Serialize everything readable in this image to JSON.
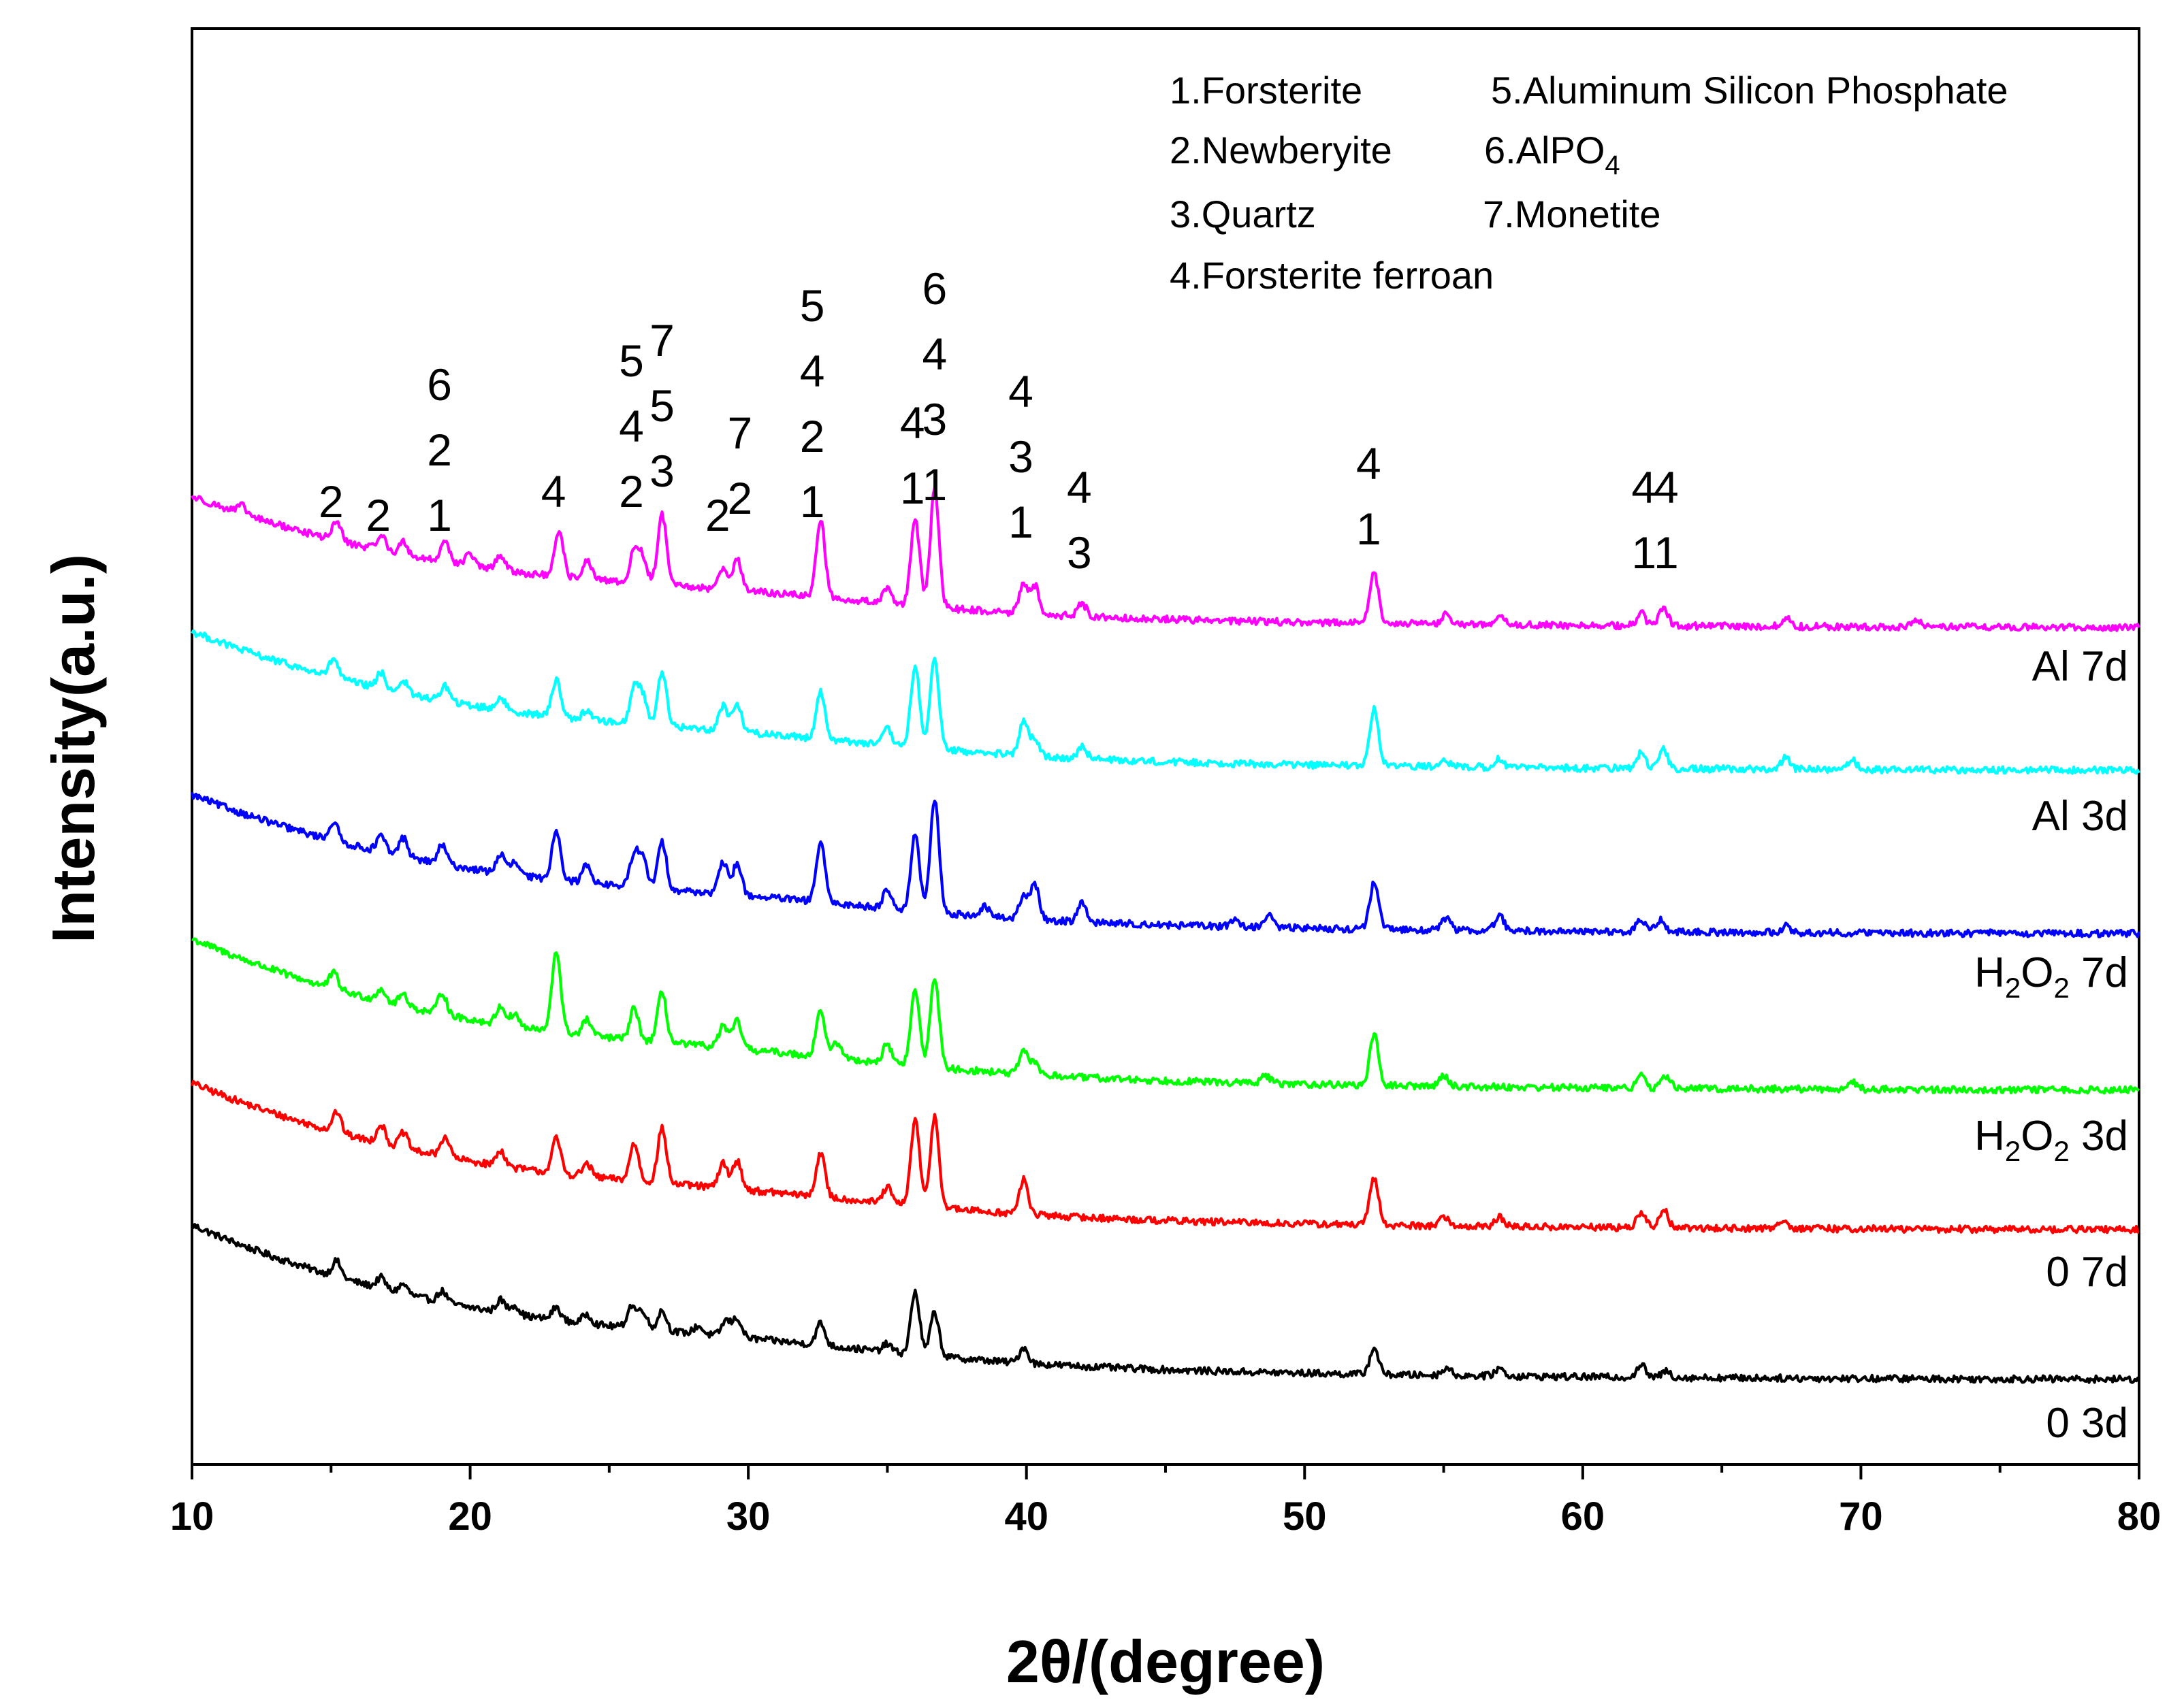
{
  "chart_data": {
    "type": "line",
    "title": "",
    "xlabel": "2θ/(degree)",
    "ylabel": "Intensity(a.u.)",
    "xlim": [
      10,
      80
    ],
    "xticks": [
      "10",
      "20",
      "30",
      "40",
      "50",
      "60",
      "70",
      "80"
    ],
    "yticks": "none",
    "legend": {
      "items": [
        {
          "text": "1.Forsterite"
        },
        {
          "text": "5.Aluminum Silicon Phosphate"
        },
        {
          "text": "2.Newberyite"
        },
        {
          "text": "6.AlPO",
          "sub": "4"
        },
        {
          "text": "3.Quartz"
        },
        {
          "text": "7.Monetite"
        },
        {
          "text": "4.Forsterite ferroan"
        }
      ]
    },
    "series": [
      {
        "name": "0 3d",
        "label_main": "0 3d",
        "label_sub": "",
        "label_tail": "",
        "color": "#000000",
        "base_start": 1.0,
        "base_end": 0.01,
        "noise": 0.022,
        "peaks": [
          [
            15.2,
            0.1
          ],
          [
            16.8,
            0.07
          ],
          [
            17.6,
            0.06
          ],
          [
            19.0,
            0.07
          ],
          [
            21.1,
            0.08
          ],
          [
            21.6,
            0.06
          ],
          [
            23.1,
            0.08
          ],
          [
            24.2,
            0.06
          ],
          [
            25.8,
            0.14
          ],
          [
            26.2,
            0.12
          ],
          [
            26.9,
            0.13
          ],
          [
            28.2,
            0.05
          ],
          [
            29.2,
            0.1
          ],
          [
            29.6,
            0.12
          ],
          [
            32.6,
            0.14
          ],
          [
            35.0,
            0.05
          ],
          [
            36.0,
            0.4
          ],
          [
            36.7,
            0.28
          ],
          [
            39.9,
            0.1
          ],
          [
            52.5,
            0.17
          ],
          [
            55.1,
            0.05
          ],
          [
            57.0,
            0.05
          ],
          [
            62.1,
            0.08
          ],
          [
            63.0,
            0.04
          ]
        ]
      },
      {
        "name": "0 7d",
        "label_main": "0 7d",
        "label_sub": "",
        "label_tail": "",
        "color": "#ff0000",
        "base_start": 0.95,
        "base_end": 0.01,
        "noise": 0.022,
        "peaks": [
          [
            15.2,
            0.13
          ],
          [
            16.8,
            0.12
          ],
          [
            17.6,
            0.1
          ],
          [
            19.1,
            0.13
          ],
          [
            21.1,
            0.1
          ],
          [
            23.1,
            0.22
          ],
          [
            24.2,
            0.08
          ],
          [
            25.9,
            0.24
          ],
          [
            26.9,
            0.35
          ],
          [
            29.1,
            0.16
          ],
          [
            29.6,
            0.18
          ],
          [
            32.6,
            0.28
          ],
          [
            35.0,
            0.1
          ],
          [
            36.0,
            0.55
          ],
          [
            36.7,
            0.58
          ],
          [
            39.9,
            0.22
          ],
          [
            52.5,
            0.3
          ],
          [
            55.0,
            0.06
          ],
          [
            57.0,
            0.06
          ],
          [
            62.1,
            0.1
          ],
          [
            62.9,
            0.12
          ],
          [
            67.2,
            0.06
          ]
        ]
      },
      {
        "name": "H2O2 3d",
        "label_main": "H",
        "label_sub": "2",
        "label_tail": "O",
        "label_sub2": "2",
        "label_end": " 3d",
        "color": "#00ff00",
        "base_start": 0.98,
        "base_end": 0.01,
        "noise": 0.022,
        "peaks": [
          [
            15.1,
            0.1
          ],
          [
            16.8,
            0.08
          ],
          [
            17.6,
            0.08
          ],
          [
            19.0,
            0.14
          ],
          [
            21.1,
            0.12
          ],
          [
            21.6,
            0.08
          ],
          [
            23.1,
            0.52
          ],
          [
            24.2,
            0.1
          ],
          [
            25.9,
            0.2
          ],
          [
            26.9,
            0.32
          ],
          [
            29.1,
            0.14
          ],
          [
            29.6,
            0.18
          ],
          [
            32.6,
            0.3
          ],
          [
            33.2,
            0.1
          ],
          [
            35.0,
            0.12
          ],
          [
            36.0,
            0.48
          ],
          [
            36.7,
            0.58
          ],
          [
            39.9,
            0.14
          ],
          [
            40.3,
            0.08
          ],
          [
            48.6,
            0.05
          ],
          [
            52.5,
            0.32
          ],
          [
            55.0,
            0.07
          ],
          [
            62.1,
            0.08
          ],
          [
            63.0,
            0.08
          ],
          [
            69.7,
            0.05
          ]
        ]
      },
      {
        "name": "H2O2 7d",
        "label_main": "H",
        "label_sub": "2",
        "label_tail": "O",
        "label_sub2": "2",
        "label_end": " 7d",
        "color": "#0000ff",
        "base_start": 0.9,
        "base_end": 0.01,
        "noise": 0.022,
        "peaks": [
          [
            15.1,
            0.12
          ],
          [
            16.8,
            0.1
          ],
          [
            17.6,
            0.12
          ],
          [
            19.0,
            0.12
          ],
          [
            21.1,
            0.12
          ],
          [
            21.6,
            0.08
          ],
          [
            23.1,
            0.32
          ],
          [
            24.2,
            0.12
          ],
          [
            25.9,
            0.2
          ],
          [
            26.2,
            0.18
          ],
          [
            26.9,
            0.3
          ],
          [
            29.1,
            0.2
          ],
          [
            29.6,
            0.2
          ],
          [
            32.6,
            0.38
          ],
          [
            35.0,
            0.12
          ],
          [
            36.0,
            0.48
          ],
          [
            36.7,
            0.72
          ],
          [
            38.5,
            0.06
          ],
          [
            39.9,
            0.14
          ],
          [
            40.3,
            0.22
          ],
          [
            42.0,
            0.12
          ],
          [
            47.5,
            0.05
          ],
          [
            48.7,
            0.08
          ],
          [
            52.5,
            0.3
          ],
          [
            55.1,
            0.08
          ],
          [
            57.0,
            0.1
          ],
          [
            62.1,
            0.08
          ],
          [
            62.8,
            0.08
          ],
          [
            67.3,
            0.04
          ]
        ]
      },
      {
        "name": "Al 3d",
        "label_main": "Al 3d",
        "label_sub": "",
        "label_tail": "",
        "color": "#00ffff",
        "base_start": 0.9,
        "base_end": 0.01,
        "noise": 0.022,
        "peaks": [
          [
            15.1,
            0.12
          ],
          [
            16.8,
            0.1
          ],
          [
            17.6,
            0.08
          ],
          [
            19.1,
            0.1
          ],
          [
            21.1,
            0.08
          ],
          [
            23.1,
            0.24
          ],
          [
            24.2,
            0.06
          ],
          [
            25.9,
            0.22
          ],
          [
            26.2,
            0.18
          ],
          [
            26.9,
            0.35
          ],
          [
            29.1,
            0.16
          ],
          [
            29.6,
            0.18
          ],
          [
            32.6,
            0.3
          ],
          [
            35.0,
            0.1
          ],
          [
            36.0,
            0.52
          ],
          [
            36.7,
            0.58
          ],
          [
            39.9,
            0.22
          ],
          [
            40.3,
            0.1
          ],
          [
            42.0,
            0.08
          ],
          [
            52.5,
            0.36
          ],
          [
            55.0,
            0.06
          ],
          [
            57.0,
            0.06
          ],
          [
            62.1,
            0.1
          ],
          [
            62.9,
            0.12
          ],
          [
            67.3,
            0.08
          ],
          [
            69.7,
            0.06
          ]
        ]
      },
      {
        "name": "Al 7d",
        "label_main": "Al 7d",
        "label_sub": "",
        "label_tail": "",
        "color": "#ff00ff",
        "base_start": 0.85,
        "base_end": 0.01,
        "noise": 0.022,
        "peaks": [
          [
            11.8,
            0.05
          ],
          [
            15.2,
            0.12
          ],
          [
            16.8,
            0.1
          ],
          [
            17.6,
            0.08
          ],
          [
            19.1,
            0.14
          ],
          [
            20.0,
            0.08
          ],
          [
            21.1,
            0.1
          ],
          [
            23.2,
            0.28
          ],
          [
            24.2,
            0.12
          ],
          [
            25.9,
            0.2
          ],
          [
            26.2,
            0.16
          ],
          [
            26.9,
            0.45
          ],
          [
            29.1,
            0.14
          ],
          [
            29.6,
            0.2
          ],
          [
            32.6,
            0.5
          ],
          [
            35.0,
            0.1
          ],
          [
            36.0,
            0.55
          ],
          [
            36.7,
            0.75
          ],
          [
            39.9,
            0.18
          ],
          [
            40.3,
            0.18
          ],
          [
            42.0,
            0.08
          ],
          [
            52.5,
            0.32
          ],
          [
            55.1,
            0.06
          ],
          [
            57.0,
            0.06
          ],
          [
            62.1,
            0.08
          ],
          [
            62.9,
            0.12
          ],
          [
            67.3,
            0.06
          ],
          [
            72.0,
            0.04
          ]
        ]
      }
    ],
    "peak_annotations": [
      {
        "x": 15.0,
        "labels": [
          "2"
        ]
      },
      {
        "x": 16.7,
        "labels": [
          "2"
        ]
      },
      {
        "x": 18.9,
        "labels": [
          "1",
          "2",
          "6"
        ]
      },
      {
        "x": 23.0,
        "labels": [
          "4"
        ]
      },
      {
        "x": 25.8,
        "labels": [
          "2",
          "4",
          "5"
        ]
      },
      {
        "x": 26.9,
        "labels": [
          "3",
          "5",
          "7"
        ]
      },
      {
        "x": 28.9,
        "labels": [
          "2"
        ]
      },
      {
        "x": 29.7,
        "labels": [
          "2",
          "7"
        ]
      },
      {
        "x": 32.3,
        "labels": [
          "1",
          "2",
          "4",
          "5"
        ]
      },
      {
        "x": 35.9,
        "labels": [
          "1",
          "4"
        ]
      },
      {
        "x": 36.7,
        "labels": [
          "1",
          "3",
          "4",
          "6"
        ]
      },
      {
        "x": 39.8,
        "labels": [
          "1",
          "3",
          "4"
        ]
      },
      {
        "x": 41.9,
        "labels": [
          "3",
          "4"
        ]
      },
      {
        "x": 52.3,
        "labels": [
          "1",
          "4"
        ]
      },
      {
        "x": 62.2,
        "labels": [
          "1",
          "4"
        ]
      },
      {
        "x": 63.0,
        "labels": [
          "1",
          "4"
        ]
      }
    ]
  }
}
